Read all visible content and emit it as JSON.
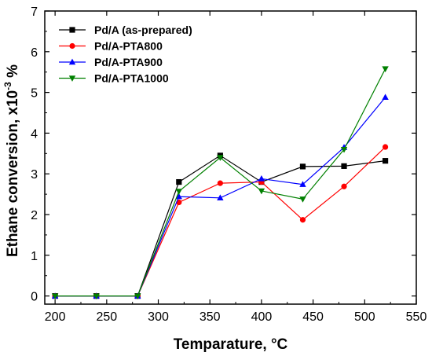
{
  "chart_data": {
    "type": "line",
    "title": "",
    "xlabel": "Temparature, °C",
    "ylabel_parts": {
      "before": "Ethane conversion, x10",
      "sup": "-3",
      "after": " %"
    },
    "xlim": [
      190,
      550
    ],
    "ylim": [
      -0.2,
      7
    ],
    "x_ticks": [
      200,
      250,
      300,
      350,
      400,
      450,
      500,
      550
    ],
    "y_ticks": [
      0,
      1,
      2,
      3,
      4,
      5,
      6,
      7
    ],
    "legend_position": "top-left",
    "x": [
      200,
      240,
      280,
      320,
      360,
      400,
      440,
      480,
      520
    ],
    "series": [
      {
        "name": "Pd/A (as-prepared)",
        "color": "#000000",
        "marker": "square",
        "values": [
          0,
          0,
          0,
          2.8,
          3.45,
          2.8,
          3.18,
          3.19,
          3.32
        ]
      },
      {
        "name": "Pd/A-PTA800",
        "color": "#ff0000",
        "marker": "circle",
        "values": [
          0,
          0,
          0,
          2.3,
          2.77,
          2.8,
          1.87,
          2.69,
          3.66
        ]
      },
      {
        "name": "Pd/A-PTA900",
        "color": "#0000ff",
        "marker": "triangle-up",
        "values": [
          0,
          0,
          0,
          2.44,
          2.41,
          2.88,
          2.74,
          3.65,
          4.88
        ]
      },
      {
        "name": "Pd/A-PTA1000",
        "color": "#008000",
        "marker": "triangle-down",
        "values": [
          0,
          0,
          0,
          2.57,
          3.4,
          2.58,
          2.38,
          3.6,
          5.58
        ]
      }
    ]
  }
}
